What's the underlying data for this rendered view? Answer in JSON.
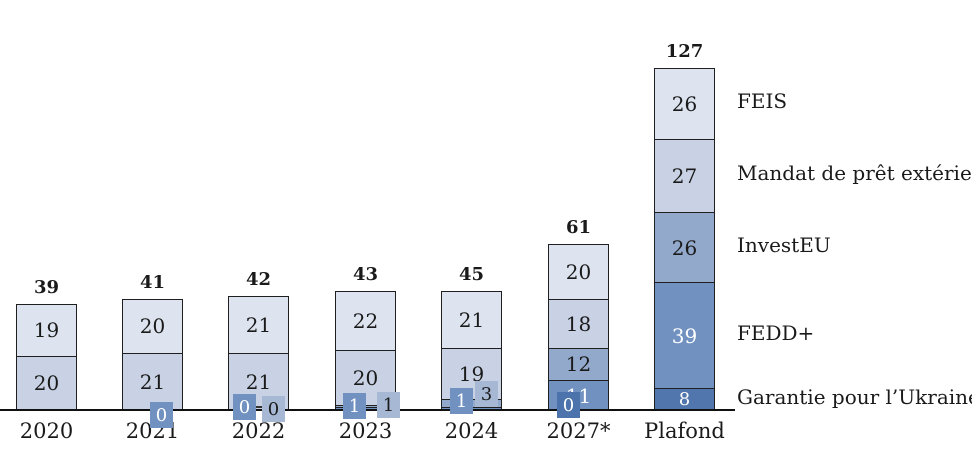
{
  "chart_data": {
    "type": "bar",
    "stacked": true,
    "title": "",
    "categories": [
      "2020",
      "2021",
      "2022",
      "2023",
      "2024",
      "2027*",
      "Plafond"
    ],
    "series": [
      {
        "name": "Garantie pour l’Ukraine",
        "color": "#5076ad",
        "text_color": "#ffffff",
        "values": [
          null,
          null,
          null,
          null,
          null,
          0,
          8
        ]
      },
      {
        "name": "FEDD+",
        "color": "#7191c1",
        "text_color": "#ffffff",
        "values": [
          null,
          0,
          0,
          1,
          1,
          11,
          39
        ]
      },
      {
        "name": "InvestEU",
        "color": "#93a9cc",
        "text_color": "#1a1a1a",
        "values": [
          null,
          null,
          0,
          1,
          3,
          12,
          26
        ]
      },
      {
        "name": "Mandat de prêt extérieur",
        "color": "#c8d2e4",
        "text_color": "#1a1a1a",
        "values": [
          20,
          21,
          21,
          20,
          19,
          18,
          27
        ]
      },
      {
        "name": "FEIS",
        "color": "#dde4ef",
        "text_color": "#1a1a1a",
        "values": [
          19,
          20,
          21,
          22,
          21,
          20,
          26
        ]
      }
    ],
    "totals": [
      39,
      41,
      42,
      43,
      45,
      61,
      127
    ],
    "legend": [
      "FEIS",
      "Mandat de prêt extérieur",
      "InvestEU",
      "FEDD+",
      "Garantie pour l’Ukraine"
    ],
    "callouts": [
      {
        "category": "2021",
        "series": "FEDD+",
        "value": "0",
        "box_color": "#7191c1",
        "text_color": "#ffffff"
      },
      {
        "category": "2022",
        "series": "FEDD+",
        "value": "0",
        "box_color": "#7191c1",
        "text_color": "#ffffff"
      },
      {
        "category": "2022",
        "series": "InvestEU",
        "value": "0",
        "box_color": "#a7b8d5",
        "text_color": "#1a1a1a"
      },
      {
        "category": "2023",
        "series": "FEDD+",
        "value": "1",
        "box_color": "#7191c1",
        "text_color": "#ffffff"
      },
      {
        "category": "2023",
        "series": "InvestEU",
        "value": "1",
        "box_color": "#a7b8d5",
        "text_color": "#1a1a1a"
      },
      {
        "category": "2024",
        "series": "FEDD+",
        "value": "1",
        "box_color": "#7191c1",
        "text_color": "#ffffff"
      },
      {
        "category": "2024",
        "series": "InvestEU",
        "value": "3",
        "box_color": "#a7b8d5",
        "text_color": "#1a1a1a"
      },
      {
        "category": "2027*",
        "series": "Garantie pour l’Ukraine",
        "value": "0",
        "box_color": "#4c73ac",
        "text_color": "#ffffff"
      }
    ],
    "axis": {
      "baseline_color": "#111111",
      "grid": false,
      "legend_position": "right"
    }
  }
}
